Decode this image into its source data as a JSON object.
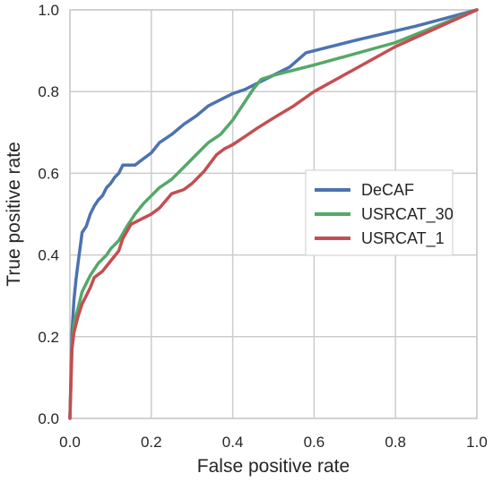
{
  "chart_data": {
    "type": "line",
    "xlabel": "False positive rate",
    "ylabel": "True positive rate",
    "xlim": [
      0,
      1
    ],
    "ylim": [
      0,
      1
    ],
    "x_ticks": [
      "0.0",
      "0.2",
      "0.4",
      "0.6",
      "0.8",
      "1.0"
    ],
    "y_ticks": [
      "0.0",
      "0.2",
      "0.4",
      "0.6",
      "0.8",
      "1.0"
    ],
    "grid": true,
    "legend_position": "center-right",
    "series": [
      {
        "name": "DeCAF",
        "color": "#4c72b0",
        "points": [
          [
            0,
            0
          ],
          [
            0.005,
            0.21
          ],
          [
            0.01,
            0.29
          ],
          [
            0.015,
            0.34
          ],
          [
            0.02,
            0.38
          ],
          [
            0.03,
            0.455
          ],
          [
            0.04,
            0.47
          ],
          [
            0.05,
            0.5
          ],
          [
            0.06,
            0.52
          ],
          [
            0.07,
            0.535
          ],
          [
            0.08,
            0.545
          ],
          [
            0.09,
            0.565
          ],
          [
            0.1,
            0.575
          ],
          [
            0.11,
            0.59
          ],
          [
            0.12,
            0.6
          ],
          [
            0.13,
            0.62
          ],
          [
            0.16,
            0.62
          ],
          [
            0.18,
            0.635
          ],
          [
            0.2,
            0.65
          ],
          [
            0.22,
            0.675
          ],
          [
            0.25,
            0.695
          ],
          [
            0.28,
            0.72
          ],
          [
            0.31,
            0.74
          ],
          [
            0.34,
            0.765
          ],
          [
            0.37,
            0.78
          ],
          [
            0.4,
            0.795
          ],
          [
            0.43,
            0.805
          ],
          [
            0.46,
            0.82
          ],
          [
            0.5,
            0.84
          ],
          [
            0.54,
            0.86
          ],
          [
            0.58,
            0.895
          ],
          [
            0.7,
            0.925
          ],
          [
            0.85,
            0.96
          ],
          [
            1.0,
            1.0
          ]
        ]
      },
      {
        "name": "USRCAT_30",
        "color": "#55a868",
        "points": [
          [
            0,
            0
          ],
          [
            0.005,
            0.18
          ],
          [
            0.01,
            0.23
          ],
          [
            0.02,
            0.27
          ],
          [
            0.03,
            0.31
          ],
          [
            0.05,
            0.35
          ],
          [
            0.07,
            0.38
          ],
          [
            0.09,
            0.4
          ],
          [
            0.1,
            0.415
          ],
          [
            0.12,
            0.435
          ],
          [
            0.14,
            0.47
          ],
          [
            0.16,
            0.5
          ],
          [
            0.18,
            0.525
          ],
          [
            0.2,
            0.545
          ],
          [
            0.22,
            0.565
          ],
          [
            0.25,
            0.585
          ],
          [
            0.28,
            0.615
          ],
          [
            0.31,
            0.645
          ],
          [
            0.34,
            0.675
          ],
          [
            0.37,
            0.695
          ],
          [
            0.4,
            0.73
          ],
          [
            0.43,
            0.775
          ],
          [
            0.45,
            0.805
          ],
          [
            0.47,
            0.83
          ],
          [
            0.5,
            0.84
          ],
          [
            0.6,
            0.865
          ],
          [
            0.8,
            0.92
          ],
          [
            1.0,
            1.0
          ]
        ]
      },
      {
        "name": "USRCAT_1",
        "color": "#c44e52",
        "points": [
          [
            0,
            0
          ],
          [
            0.005,
            0.17
          ],
          [
            0.01,
            0.21
          ],
          [
            0.02,
            0.25
          ],
          [
            0.03,
            0.28
          ],
          [
            0.05,
            0.32
          ],
          [
            0.06,
            0.345
          ],
          [
            0.08,
            0.36
          ],
          [
            0.1,
            0.385
          ],
          [
            0.12,
            0.41
          ],
          [
            0.13,
            0.44
          ],
          [
            0.15,
            0.475
          ],
          [
            0.17,
            0.485
          ],
          [
            0.2,
            0.5
          ],
          [
            0.22,
            0.515
          ],
          [
            0.25,
            0.55
          ],
          [
            0.28,
            0.56
          ],
          [
            0.3,
            0.575
          ],
          [
            0.33,
            0.605
          ],
          [
            0.36,
            0.645
          ],
          [
            0.38,
            0.66
          ],
          [
            0.4,
            0.67
          ],
          [
            0.43,
            0.69
          ],
          [
            0.46,
            0.71
          ],
          [
            0.5,
            0.735
          ],
          [
            0.55,
            0.765
          ],
          [
            0.6,
            0.8
          ],
          [
            0.7,
            0.855
          ],
          [
            0.8,
            0.91
          ],
          [
            0.9,
            0.955
          ],
          [
            1.0,
            1.0
          ]
        ]
      }
    ]
  }
}
